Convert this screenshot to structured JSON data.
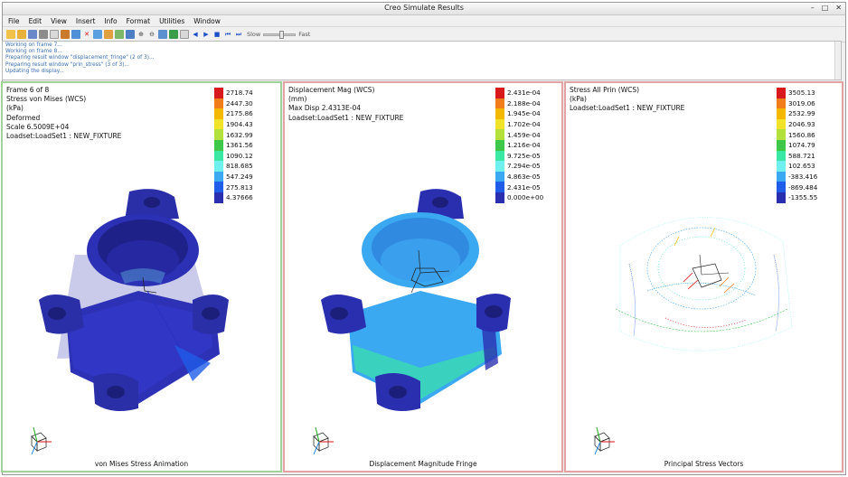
{
  "window": {
    "title": "Creo Simulate Results"
  },
  "menu": [
    "File",
    "Edit",
    "View",
    "Insert",
    "Info",
    "Format",
    "Utilities",
    "Window"
  ],
  "toolbar": {
    "slow_label": "Slow",
    "fast_label": "Fast",
    "speed_level": 0.55
  },
  "messages": [
    "Working on frame 7...",
    "Working on frame 8...",
    "Preparing result window \"displacement_fringe\" (2 of 3)...",
    "Preparing result window \"prin_stress\" (3 of 3)...",
    "Updating the display..."
  ],
  "colors": {
    "legend": [
      "#d7191c",
      "#f07c1a",
      "#f5b800",
      "#f0e32a",
      "#b4e03c",
      "#3ec84a",
      "#3ae8a3",
      "#6ff0ee",
      "#3ba8f2",
      "#1f5de8",
      "#2a2fb0"
    ]
  },
  "panels": [
    {
      "info": [
        "Frame 6 of 8",
        "Stress von Mises (WCS)",
        "(kPa)",
        "Deformed",
        "Scale  6.5009E+04",
        "Loadset:LoadSet1 :  NEW_FIXTURE"
      ],
      "legend_values": [
        "2718.74",
        "2447.30",
        "2175.86",
        "1904.43",
        "1632.99",
        "1361.56",
        "1090.12",
        "818.685",
        "547.249",
        "275.813",
        "4.37666"
      ],
      "caption": "von Mises Stress Animation"
    },
    {
      "info": [
        "Displacement Mag (WCS)",
        "(mm)",
        "Max Disp  2.4313E-04",
        "Loadset:LoadSet1 :  NEW_FIXTURE"
      ],
      "legend_values": [
        "2.431e-04",
        "2.188e-04",
        "1.945e-04",
        "1.702e-04",
        "1.459e-04",
        "1.216e-04",
        "9.725e-05",
        "7.294e-05",
        "4.863e-05",
        "2.431e-05",
        "0.000e+00"
      ],
      "caption": "Displacement Magnitude Fringe"
    },
    {
      "info": [
        "Stress All Prin (WCS)",
        "(kPa)",
        "Loadset:LoadSet1 :  NEW_FIXTURE"
      ],
      "legend_values": [
        "3505.13",
        "3019.06",
        "2532.99",
        "2046.93",
        "1560.86",
        "1074.79",
        "588.721",
        "102.653",
        "-383.416",
        "-869.484",
        "-1355.55"
      ],
      "caption": "Principal Stress Vectors"
    }
  ]
}
